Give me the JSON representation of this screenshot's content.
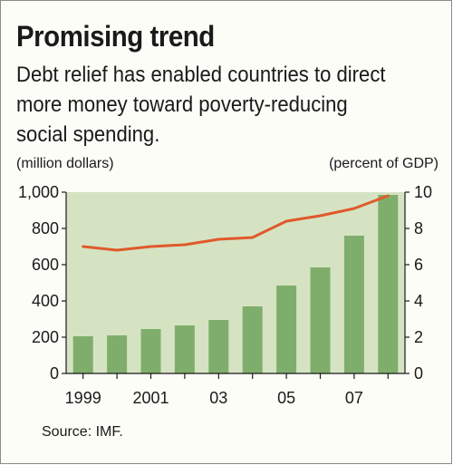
{
  "title": "Promising trend",
  "subtitle_lines": [
    "Debt relief has enabled countries to direct",
    "more money toward poverty-reducing",
    "social spending."
  ],
  "left_unit": "(million dollars)",
  "right_unit": "(percent of GDP)",
  "source": "Source: IMF.",
  "colors": {
    "bar": "#7fae6c",
    "line": "#e05a2b",
    "plot_bg": "#d5e3c3"
  },
  "chart_data": {
    "type": "bar+line",
    "x": [
      "1999",
      "2000",
      "2001",
      "2002",
      "2003",
      "2004",
      "2005",
      "2006",
      "2007",
      "2008"
    ],
    "x_tick_labels": [
      "1999",
      "",
      "2001",
      "",
      "03",
      "",
      "05",
      "",
      "07",
      ""
    ],
    "series": [
      {
        "type": "bar",
        "axis": "left",
        "values": [
          205,
          210,
          245,
          265,
          295,
          370,
          485,
          585,
          760,
          985
        ]
      },
      {
        "type": "line",
        "axis": "right",
        "values": [
          7.0,
          6.8,
          7.0,
          7.1,
          7.4,
          7.5,
          8.4,
          8.7,
          9.1,
          9.8
        ]
      }
    ],
    "left_axis": {
      "ylim": [
        0,
        1000
      ],
      "ticks": [
        "0",
        "200",
        "400",
        "600",
        "800",
        "1,000"
      ]
    },
    "right_axis": {
      "ylim": [
        0,
        10
      ],
      "ticks": [
        "0",
        "2",
        "4",
        "6",
        "8",
        "10"
      ]
    },
    "grid": false
  }
}
